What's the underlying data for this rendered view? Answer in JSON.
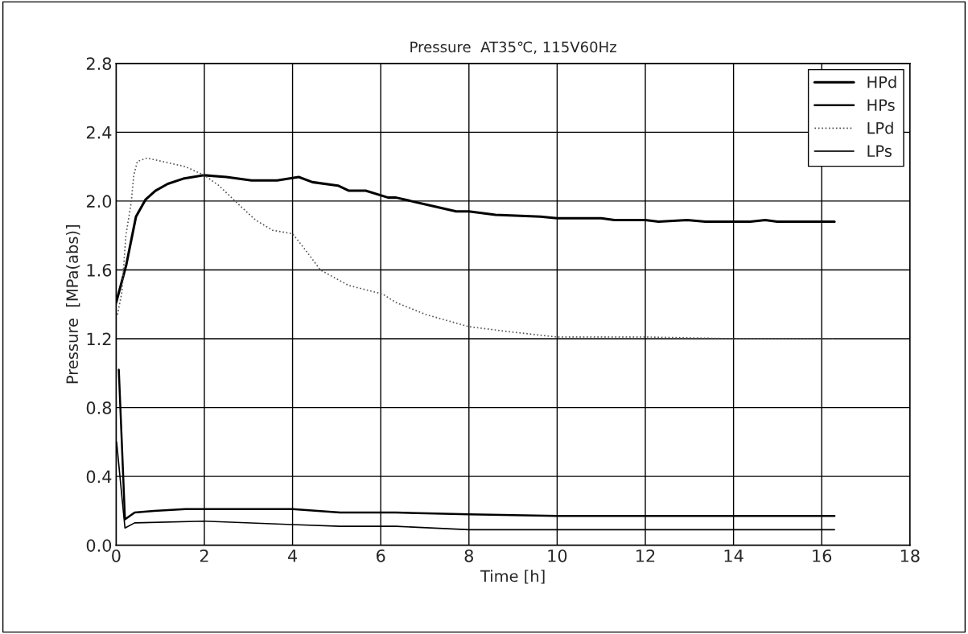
{
  "chart_data": {
    "type": "line",
    "title": "Pressure  AT35℃, 115V60Hz",
    "xlabel": "Time [h]",
    "ylabel": "Pressure  [MPa(abs)]",
    "xlim": [
      0,
      18
    ],
    "xticks": [
      0,
      2,
      4,
      6,
      8,
      10,
      12,
      14,
      16,
      18
    ],
    "ylim": [
      0.0,
      2.8
    ],
    "yticks": [
      {
        "value": 0.0,
        "label": "0.0"
      },
      {
        "value": 0.4,
        "label": "0.4"
      },
      {
        "value": 0.8,
        "label": "0.8"
      },
      {
        "value": 1.2,
        "label": "1.2"
      },
      {
        "value": 1.6,
        "label": "1.6"
      },
      {
        "value": 2.0,
        "label": "2.0"
      },
      {
        "value": 2.4,
        "label": "2.4"
      },
      {
        "value": 2.8,
        "label": "2.8"
      }
    ],
    "grid": true,
    "legend": "top right",
    "marker": "none",
    "series": [
      {
        "name": "HPd",
        "color": "#000000",
        "line_style": "solid",
        "x": [
          0.0,
          0.23,
          0.45,
          0.67,
          0.89,
          1.17,
          1.52,
          1.99,
          2.5,
          3.07,
          3.65,
          4.14,
          4.45,
          5.03,
          5.28,
          5.66,
          6.17,
          6.35,
          7.03,
          7.71,
          8.0,
          8.6,
          9.62,
          10.0,
          10.78,
          11.0,
          11.3,
          12.0,
          12.3,
          12.95,
          13.36,
          14.38,
          14.72,
          14.99,
          15.74,
          16.29
        ],
        "values": [
          1.41,
          1.63,
          1.91,
          2.01,
          2.06,
          2.1,
          2.13,
          2.15,
          2.14,
          2.12,
          2.12,
          2.14,
          2.11,
          2.09,
          2.06,
          2.06,
          2.02,
          2.02,
          1.98,
          1.94,
          1.94,
          1.92,
          1.91,
          1.9,
          1.9,
          1.9,
          1.89,
          1.89,
          1.88,
          1.89,
          1.88,
          1.88,
          1.89,
          1.88,
          1.88,
          1.88
        ]
      },
      {
        "name": "HPs",
        "color": "#000000",
        "line_style": "solid",
        "x": [
          0.06,
          0.2,
          0.42,
          0.86,
          1.57,
          4.0,
          5.08,
          6.35,
          8.0,
          10.0,
          16.29
        ],
        "values": [
          1.02,
          0.15,
          0.19,
          0.2,
          0.21,
          0.21,
          0.19,
          0.19,
          0.18,
          0.17,
          0.17
        ]
      },
      {
        "name": "LPd",
        "color": "#555555",
        "line_style": "dotted",
        "x": [
          0.03,
          0.13,
          0.22,
          0.34,
          0.4,
          0.48,
          0.7,
          1.05,
          1.57,
          2.0,
          2.33,
          2.78,
          3.16,
          3.55,
          4.0,
          4.25,
          4.63,
          5.27,
          6.04,
          6.35,
          7.03,
          8.0,
          8.94,
          10.0,
          10.8,
          12.0,
          14.0,
          16.29
        ],
        "values": [
          1.34,
          1.47,
          1.8,
          1.99,
          2.15,
          2.23,
          2.25,
          2.23,
          2.2,
          2.15,
          2.09,
          1.98,
          1.89,
          1.83,
          1.81,
          1.73,
          1.6,
          1.51,
          1.46,
          1.41,
          1.34,
          1.27,
          1.24,
          1.21,
          1.21,
          1.21,
          1.2,
          1.2
        ]
      },
      {
        "name": "LPs",
        "color": "#000000",
        "line_style": "solid",
        "x": [
          0.01,
          0.2,
          0.42,
          2.0,
          4.0,
          5.08,
          6.35,
          8.0,
          10.0,
          16.29
        ],
        "values": [
          0.6,
          0.1,
          0.13,
          0.14,
          0.12,
          0.11,
          0.11,
          0.09,
          0.09,
          0.09
        ]
      }
    ]
  }
}
